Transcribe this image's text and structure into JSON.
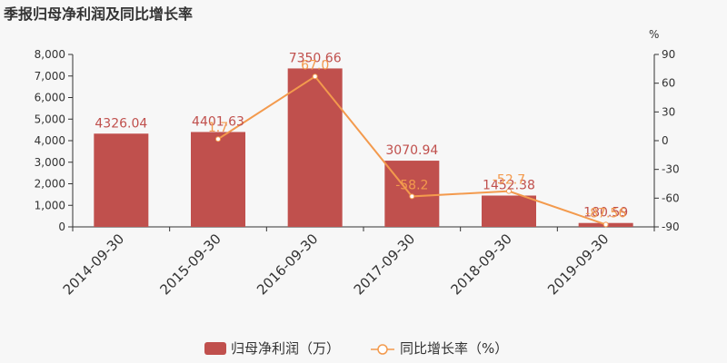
{
  "chart_data": {
    "type": "bar",
    "title": "季报归母净利润及同比增长率",
    "categories": [
      "2014-09-30",
      "2015-09-30",
      "2016-09-30",
      "2017-09-30",
      "2018-09-30",
      "2019-09-30"
    ],
    "series": [
      {
        "name": "归母净利润（万）",
        "type": "bar",
        "axis": "left",
        "values": [
          4326.04,
          4401.63,
          7350.66,
          3070.94,
          1452.38,
          180.59
        ],
        "labels": [
          "4326.04",
          "4401.63",
          "7350.66",
          "3070.94",
          "1452.38",
          "180.59"
        ],
        "color": "#c0504d"
      },
      {
        "name": "同比增长率（%）",
        "type": "line",
        "axis": "right",
        "values": [
          null,
          1.7,
          67.0,
          -58.2,
          -52.7,
          -87.56
        ],
        "labels": [
          "",
          "1.7",
          "67.0",
          "-58.2",
          "-52.7",
          "-87.56"
        ],
        "color": "#f39a4d"
      }
    ],
    "y_left": {
      "ylim": [
        0,
        8000
      ],
      "ticks": [
        0,
        1000,
        2000,
        3000,
        4000,
        5000,
        6000,
        7000,
        8000
      ],
      "tick_labels": [
        "0",
        "1,000",
        "2,000",
        "3,000",
        "4,000",
        "5,000",
        "6,000",
        "7,000",
        "8,000"
      ]
    },
    "y_right": {
      "unit": "%",
      "ylim": [
        -90,
        90
      ],
      "ticks": [
        -90,
        -60,
        -30,
        0,
        30,
        60,
        90
      ],
      "tick_labels": [
        "-90",
        "-60",
        "-30",
        "0",
        "30",
        "60",
        "90"
      ]
    },
    "grid": false,
    "legend_position": "bottom-center",
    "colors": {
      "axis": "#333333",
      "background": "#f7f7f7"
    }
  }
}
